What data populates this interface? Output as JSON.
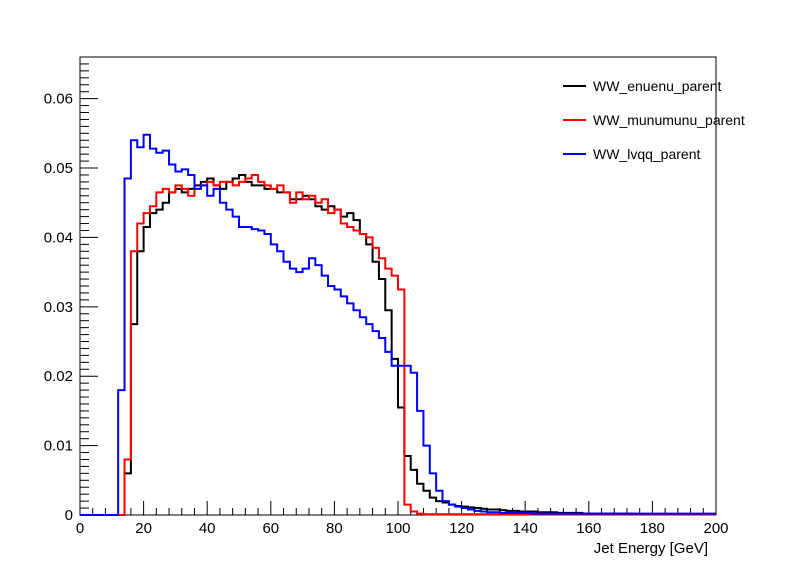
{
  "chart_data": {
    "type": "line",
    "title": "",
    "xlabel": "Jet Energy [GeV]",
    "ylabel": "",
    "xlim": [
      0,
      200
    ],
    "ylim": [
      0,
      0.066
    ],
    "bin_width": 2,
    "x_ticks": [
      0,
      20,
      40,
      60,
      80,
      100,
      120,
      140,
      160,
      180,
      200
    ],
    "y_ticks": [
      0,
      0.01,
      0.02,
      0.03,
      0.04,
      0.05,
      0.06
    ],
    "x_tick_labels": [
      "0",
      "20",
      "40",
      "60",
      "80",
      "100",
      "120",
      "140",
      "160",
      "180",
      "200"
    ],
    "y_tick_labels": [
      "0",
      "0.01",
      "0.02",
      "0.03",
      "0.04",
      "0.05",
      "0.06"
    ],
    "grid": false,
    "legend_position": "top-right",
    "series": [
      {
        "name": "WW_enuenu_parent",
        "color": "#000000",
        "values": [
          0,
          0,
          0,
          0,
          0,
          0,
          0,
          0.006,
          0.0275,
          0.038,
          0.0415,
          0.0435,
          0.044,
          0.045,
          0.0465,
          0.047,
          0.0465,
          0.047,
          0.0475,
          0.048,
          0.0485,
          0.0475,
          0.047,
          0.048,
          0.0485,
          0.049,
          0.048,
          0.0475,
          0.0475,
          0.047,
          0.047,
          0.0465,
          0.0465,
          0.0455,
          0.0455,
          0.046,
          0.0455,
          0.0445,
          0.044,
          0.0445,
          0.044,
          0.043,
          0.0435,
          0.0425,
          0.0405,
          0.039,
          0.0365,
          0.034,
          0.0295,
          0.0225,
          0.0155,
          0.0085,
          0.0065,
          0.0045,
          0.0035,
          0.0025,
          0.002,
          0.0018,
          0.0015,
          0.0013,
          0.0012,
          0.0011,
          0.001,
          0.0009,
          0.0008,
          0.0008,
          0.0007,
          0.0006,
          0.0006,
          0.0005,
          0.0005,
          0.0005,
          0.0004,
          0.0004,
          0.0004,
          0.0003,
          0.0003,
          0.0003,
          0.0003,
          0.0002,
          0.0002,
          0.0002,
          0.0002,
          0.0002,
          0.0002,
          0.0002,
          0.0002,
          0.0001,
          0.0001,
          0.0001,
          0.0001,
          0.0001,
          0.0001,
          0.0001,
          0.0001,
          0.0001,
          0.0001,
          0.0001,
          0.0001,
          0.0001
        ]
      },
      {
        "name": "WW_munumunu_parent",
        "color": "#ff0000",
        "values": [
          0,
          0,
          0,
          0,
          0,
          0,
          0,
          0.008,
          0.038,
          0.042,
          0.0435,
          0.0445,
          0.0465,
          0.047,
          0.0465,
          0.0475,
          0.047,
          0.046,
          0.047,
          0.0475,
          0.048,
          0.0475,
          0.048,
          0.048,
          0.0475,
          0.048,
          0.0485,
          0.049,
          0.048,
          0.0475,
          0.047,
          0.0475,
          0.0465,
          0.045,
          0.0465,
          0.0455,
          0.046,
          0.045,
          0.0455,
          0.0435,
          0.044,
          0.042,
          0.0415,
          0.041,
          0.0405,
          0.04,
          0.0385,
          0.037,
          0.0355,
          0.0345,
          0.0325,
          0.0015,
          0.0005,
          0.0002,
          0.0001,
          0.0001,
          0.0001,
          0.0001,
          0.0001,
          0.0001,
          0.0001,
          0.0001,
          0.0001,
          0.0001,
          0.0001,
          0.0001,
          0.0001,
          0.0001,
          0.0001,
          0.0001,
          0.0001,
          0.0001,
          0.0001,
          0.0001,
          0.0001,
          0.0001,
          0.0001,
          0.0001,
          0.0001,
          0.0001,
          0.0001,
          0.0001,
          0.0001,
          0.0001,
          0.0001,
          0.0001,
          0.0001,
          0.0001,
          0.0001,
          0.0001,
          0.0001,
          0.0001,
          0.0001,
          0.0001,
          0.0001,
          0.0001,
          0.0001,
          0.0001,
          0.0001,
          0.0001
        ]
      },
      {
        "name": "WW_lvqq_parent",
        "color": "#0000ff",
        "values": [
          0,
          0,
          0,
          0,
          0,
          0,
          0.018,
          0.0485,
          0.054,
          0.053,
          0.0548,
          0.0528,
          0.0522,
          0.0525,
          0.0505,
          0.0495,
          0.0498,
          0.049,
          0.047,
          0.0475,
          0.046,
          0.047,
          0.045,
          0.044,
          0.043,
          0.0415,
          0.0415,
          0.0412,
          0.041,
          0.0405,
          0.039,
          0.038,
          0.0365,
          0.0355,
          0.035,
          0.0355,
          0.037,
          0.036,
          0.0345,
          0.033,
          0.0325,
          0.0315,
          0.0305,
          0.0295,
          0.0285,
          0.0275,
          0.0265,
          0.0255,
          0.0235,
          0.0215,
          0.0215,
          0.0215,
          0.0205,
          0.015,
          0.01,
          0.006,
          0.0035,
          0.002,
          0.0015,
          0.0012,
          0.001,
          0.0008,
          0.0006,
          0.0005,
          0.0004,
          0.0004,
          0.0003,
          0.0003,
          0.0003,
          0.0003,
          0.0003,
          0.0002,
          0.0002,
          0.0002,
          0.0002,
          0.0002,
          0.0002,
          0.0002,
          0.0002,
          0.0002,
          0.0002,
          0.0002,
          0.0002,
          0.0002,
          0.0002,
          0.0002,
          0.0002,
          0.0002,
          0.0002,
          0.0002,
          0.0002,
          0.0002,
          0.0002,
          0.0002,
          0.0002,
          0.0002,
          0.0002,
          0.0002,
          0.0002,
          0.0002
        ]
      }
    ]
  }
}
